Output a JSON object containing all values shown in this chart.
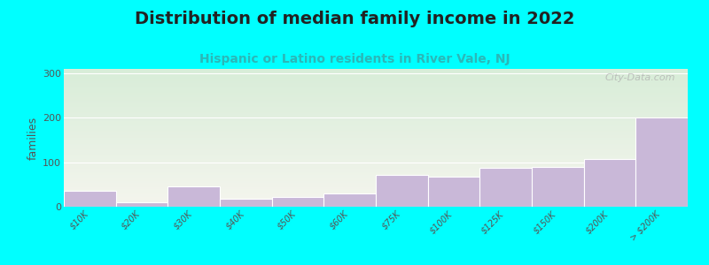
{
  "title": "Distribution of median family income in 2022",
  "subtitle": "Hispanic or Latino residents in River Vale, NJ",
  "ylabel": "families",
  "categories": [
    "$10K",
    "$20K",
    "$30K",
    "$40K",
    "$50K",
    "$60K",
    "$75K",
    "$100K",
    "$125K",
    "$150K",
    "$200K",
    "> $200K"
  ],
  "values": [
    35,
    10,
    45,
    18,
    22,
    30,
    72,
    68,
    87,
    90,
    108,
    200
  ],
  "bar_color": "#c9b8d8",
  "bar_edgecolor": "#ffffff",
  "bg_top_color": "#d8edd8",
  "bg_bottom_color": "#f5f5ee",
  "outer_bg": "#00ffff",
  "ylim": [
    0,
    310
  ],
  "yticks": [
    0,
    100,
    200,
    300
  ],
  "title_fontsize": 14,
  "subtitle_fontsize": 10,
  "ylabel_fontsize": 9,
  "watermark": "City-Data.com"
}
